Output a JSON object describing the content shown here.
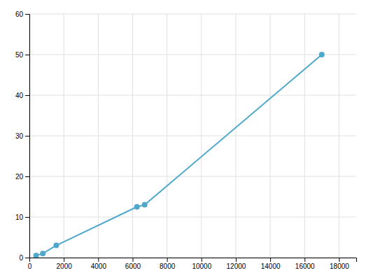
{
  "chart_data": {
    "type": "line",
    "x": [
      390,
      781,
      1563,
      6250,
      6700,
      17000
    ],
    "values": [
      0.5,
      1.0,
      3.0,
      12.5,
      13.0,
      50.0
    ],
    "color": "#4fa8cc",
    "marker": "circle",
    "xlim": [
      0,
      19000
    ],
    "ylim": [
      0,
      60
    ],
    "xticks": [
      0,
      2000,
      4000,
      6000,
      8000,
      10000,
      12000,
      14000,
      16000,
      18000
    ],
    "yticks": [
      0,
      10,
      20,
      30,
      40,
      50,
      60
    ],
    "grid": true
  }
}
